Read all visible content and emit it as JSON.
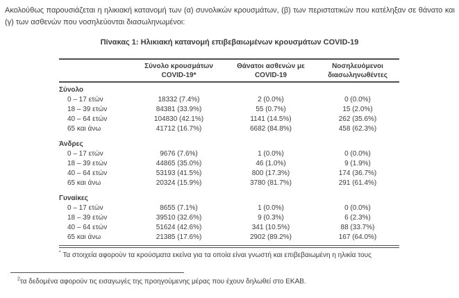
{
  "page": {
    "intro": "Ακολούθως παρουσιάζεται η ηλικιακή κατανομή των (α) συνολικών κρουσμάτων, (β) των περιστατικών που κατέληξαν σε θάνατο και (γ) των ασθενών που νοσηλεύονται διασωληνωμένοι:",
    "bottom_footnote_marker": "2",
    "bottom_footnote": "τα δεδομένα αφορούν τις εισαγωγές της προηγούμενης μέρας που έχουν δηλωθεί στο ΕΚΑΒ."
  },
  "colors": {
    "text": "#3c3c3c",
    "rule": "#4d4d4d",
    "background": "#ffffff"
  },
  "table": {
    "title": "Πίνακας 1: Ηλικιακή κατανομή επιβεβαιωμένων κρουσμάτων COVID-19",
    "columns": [
      {
        "line1": "Σύνολο κρουσμάτων",
        "line2": "COVID-19*"
      },
      {
        "line1": "Θάνατοι ασθενών με",
        "line2": "COVID-19"
      },
      {
        "line1": "Νοσηλευόμενοι",
        "line2": "διασωληνωθέντες"
      }
    ],
    "sections": [
      {
        "label": "Σύνολο",
        "rows": [
          {
            "age": "0 – 17 ετών",
            "cases": "18332 (7.4%)",
            "deaths": "2 (0.0%)",
            "intubated": "0 (0.0%)"
          },
          {
            "age": "18 – 39 ετών",
            "cases": "84381 (33.9%)",
            "deaths": "55 (0.7%)",
            "intubated": "15 (2.0%)"
          },
          {
            "age": "40 – 64 ετών",
            "cases": "104830 (42.1%)",
            "deaths": "1141 (14.5%)",
            "intubated": "262 (35.6%)"
          },
          {
            "age": "65 και άνω",
            "cases": "41712 (16.7%)",
            "deaths": "6682 (84.8%)",
            "intubated": "458 (62.3%)"
          }
        ]
      },
      {
        "label": "Άνδρες",
        "rows": [
          {
            "age": "0 – 17 ετών",
            "cases": "9676 (7.6%)",
            "deaths": "1 (0.0%)",
            "intubated": "0 (0.0%)"
          },
          {
            "age": "18 – 39 ετών",
            "cases": "44865 (35.0%)",
            "deaths": "46 (1.0%)",
            "intubated": "9 (1.9%)"
          },
          {
            "age": "40 – 64 ετών",
            "cases": "53193 (41.5%)",
            "deaths": "800 (17.3%)",
            "intubated": "174 (36.7%)"
          },
          {
            "age": "65 και άνω",
            "cases": "20324 (15.9%)",
            "deaths": "3780 (81.7%)",
            "intubated": "291 (61.4%)"
          }
        ]
      },
      {
        "label": "Γυναίκες",
        "rows": [
          {
            "age": "0 – 17 ετών",
            "cases": "8655 (7.1%)",
            "deaths": "1 (0.0%)",
            "intubated": "0 (0.0%)"
          },
          {
            "age": "18 – 39 ετών",
            "cases": "39510 (32.6%)",
            "deaths": "9 (0.3%)",
            "intubated": "6 (2.3%)"
          },
          {
            "age": "40 – 64 ετών",
            "cases": "51624 (42.6%)",
            "deaths": "341 (10.5%)",
            "intubated": "88 (33.7%)"
          },
          {
            "age": "65 και άνω",
            "cases": "21385 (17.6%)",
            "deaths": "2902 (89.2%)",
            "intubated": "167 (64.0%)"
          }
        ]
      }
    ],
    "footnote_marker": "*",
    "footnote": "Τα στοιχεία αφορούν τα κρούσματα εκείνα για τα οποία είναι γνωστή και επιβεβαιωμένη η ηλικία τους"
  }
}
